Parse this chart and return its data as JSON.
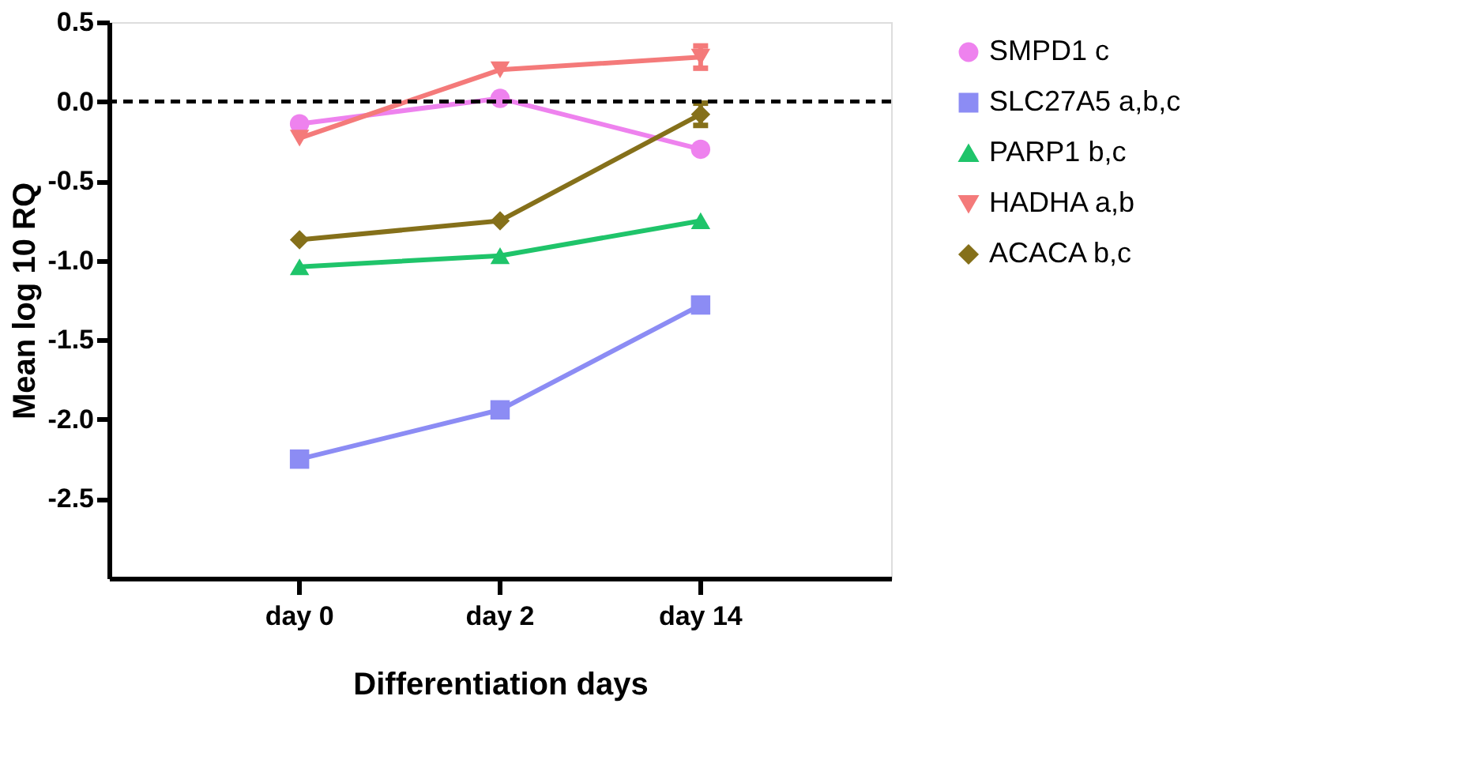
{
  "chart_data": {
    "type": "line",
    "xlabel": "Differentiation days",
    "ylabel": "Mean log 10 RQ",
    "categories": [
      "day 0",
      "day 2",
      "day 14"
    ],
    "ylim": [
      -3,
      0.5
    ],
    "yticks": [
      {
        "value": 0.5,
        "label": "0.5"
      },
      {
        "value": 0,
        "label": "0.0"
      },
      {
        "value": -0.5,
        "label": "-0.5"
      },
      {
        "value": -1,
        "label": "-1.0"
      },
      {
        "value": -1.5,
        "label": "-1.5"
      },
      {
        "value": -2,
        "label": "-2.0"
      },
      {
        "value": -2.5,
        "label": "-2.5"
      }
    ],
    "grid": false,
    "legend": "right",
    "line_style": "solid",
    "ref_lines": [
      {
        "axis": "y",
        "value": 0,
        "color": "#000000",
        "line_style": "dashed"
      }
    ],
    "series": [
      {
        "name": "SMPD1 c",
        "color": "#ee82ee",
        "marker": "circle",
        "values": [
          -0.14,
          0.02,
          -0.3
        ]
      },
      {
        "name": "SLC27A5 a,b,c",
        "color": "#8c8cf4",
        "marker": "square",
        "values": [
          -2.25,
          -1.94,
          -1.28
        ]
      },
      {
        "name": "PARP1 b,c",
        "color": "#1fc46a",
        "marker": "triangle",
        "values": [
          -1.04,
          -0.97,
          -0.75
        ]
      },
      {
        "name": "HADHA a,b",
        "color": "#f47a7a",
        "marker": "triangle-down",
        "values": [
          -0.23,
          0.2,
          0.28
        ],
        "errors": [
          null,
          null,
          0.07
        ]
      },
      {
        "name": "ACACA b,c",
        "color": "#85701a",
        "marker": "diamond",
        "values": [
          -0.87,
          -0.75,
          -0.08
        ],
        "errors": [
          null,
          null,
          0.07
        ]
      }
    ]
  }
}
